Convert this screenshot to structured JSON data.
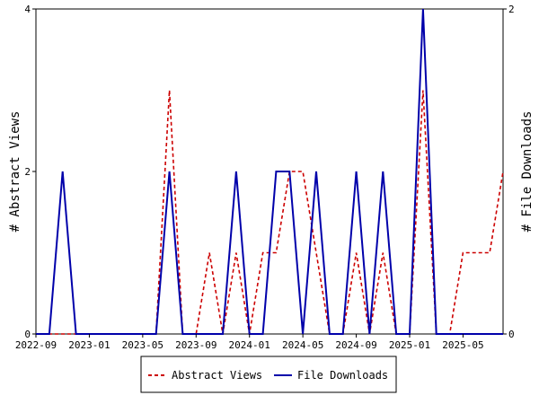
{
  "chart_data": {
    "type": "line",
    "title": "",
    "xlabel": "",
    "ylabel": "# Abstract Views",
    "y2label": "# File Downloads",
    "x_ticks": [
      "2022-09",
      "2023-01",
      "2023-05",
      "2023-09",
      "2024-01",
      "2024-05",
      "2024-09",
      "2025-01",
      "2025-05"
    ],
    "ylim": [
      0,
      4
    ],
    "y_ticks": [
      "0",
      "2",
      "4"
    ],
    "y2lim": [
      0,
      2
    ],
    "y2_ticks": [
      "0",
      "2"
    ],
    "legend": "bottom-center",
    "grid": false,
    "x_range": [
      "2022-09",
      "2025-08"
    ],
    "series": [
      {
        "name": "Abstract Views",
        "axis": "left",
        "color": "#cc0000",
        "style": "dashed",
        "points": [
          [
            "2022-09",
            0
          ],
          [
            "2022-10",
            0
          ],
          [
            "2022-11",
            0
          ],
          [
            "2022-12",
            0
          ],
          [
            "2023-01",
            0
          ],
          [
            "2023-02",
            0
          ],
          [
            "2023-03",
            0
          ],
          [
            "2023-04",
            0
          ],
          [
            "2023-05",
            0
          ],
          [
            "2023-06",
            0
          ],
          [
            "2023-07",
            3
          ],
          [
            "2023-08",
            0
          ],
          [
            "2023-09",
            0
          ],
          [
            "2023-10",
            1
          ],
          [
            "2023-11",
            0
          ],
          [
            "2023-12",
            1
          ],
          [
            "2024-01",
            0
          ],
          [
            "2024-02",
            1
          ],
          [
            "2024-03",
            1
          ],
          [
            "2024-04",
            2
          ],
          [
            "2024-05",
            2
          ],
          [
            "2024-06",
            1
          ],
          [
            "2024-07",
            0
          ],
          [
            "2024-08",
            0
          ],
          [
            "2024-09",
            1
          ],
          [
            "2024-10",
            0
          ],
          [
            "2024-11",
            1
          ],
          [
            "2024-12",
            0
          ],
          [
            "2025-01",
            0
          ],
          [
            "2025-02",
            3
          ],
          [
            "2025-03",
            0
          ],
          [
            "2025-04",
            0
          ],
          [
            "2025-05",
            1
          ],
          [
            "2025-06",
            1
          ],
          [
            "2025-07",
            1
          ],
          [
            "2025-08",
            2
          ]
        ]
      },
      {
        "name": "File Downloads",
        "axis": "right",
        "color": "#0000aa",
        "style": "solid",
        "points": [
          [
            "2022-09",
            0
          ],
          [
            "2022-10",
            0
          ],
          [
            "2022-11",
            1
          ],
          [
            "2022-12",
            0
          ],
          [
            "2023-01",
            0
          ],
          [
            "2023-02",
            0
          ],
          [
            "2023-03",
            0
          ],
          [
            "2023-04",
            0
          ],
          [
            "2023-05",
            0
          ],
          [
            "2023-06",
            0
          ],
          [
            "2023-07",
            1
          ],
          [
            "2023-08",
            0
          ],
          [
            "2023-09",
            0
          ],
          [
            "2023-10",
            0
          ],
          [
            "2023-11",
            0
          ],
          [
            "2023-12",
            1
          ],
          [
            "2024-01",
            0
          ],
          [
            "2024-02",
            0
          ],
          [
            "2024-03",
            1
          ],
          [
            "2024-04",
            1
          ],
          [
            "2024-05",
            0
          ],
          [
            "2024-06",
            1
          ],
          [
            "2024-07",
            0
          ],
          [
            "2024-08",
            0
          ],
          [
            "2024-09",
            1
          ],
          [
            "2024-10",
            0
          ],
          [
            "2024-11",
            1
          ],
          [
            "2024-12",
            0
          ],
          [
            "2025-01",
            0
          ],
          [
            "2025-02",
            2
          ],
          [
            "2025-03",
            0
          ],
          [
            "2025-04",
            0
          ],
          [
            "2025-05",
            0
          ],
          [
            "2025-06",
            0
          ],
          [
            "2025-07",
            0
          ],
          [
            "2025-08",
            0
          ]
        ]
      }
    ]
  }
}
